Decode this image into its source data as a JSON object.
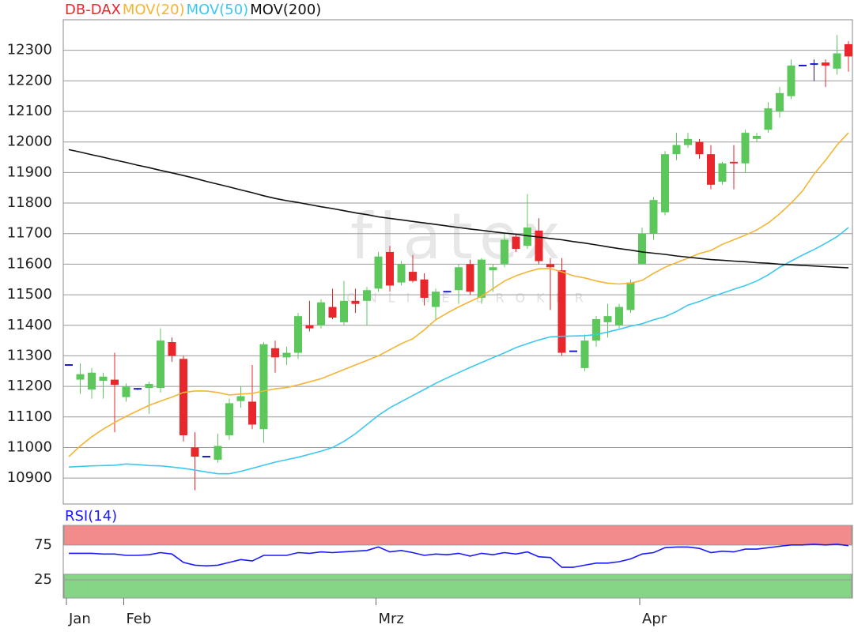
{
  "chart_data": [
    {
      "type": "candlestick",
      "watermark": "flatex",
      "watermark_sub": "ONLINE BROKER",
      "categories": [
        "Jan",
        null,
        null,
        null,
        null,
        "Feb",
        null,
        null,
        null,
        null,
        null,
        null,
        null,
        null,
        null,
        null,
        null,
        null,
        null,
        null,
        null,
        null,
        null,
        null,
        null,
        null,
        null,
        "Mrz",
        null,
        null,
        null,
        null,
        null,
        null,
        null,
        null,
        null,
        null,
        null,
        null,
        null,
        null,
        null,
        null,
        null,
        null,
        null,
        null,
        null,
        null,
        "Apr",
        null,
        null,
        null,
        null,
        null,
        null,
        null,
        null,
        null,
        null,
        null,
        null,
        null,
        null,
        null,
        null,
        null,
        null
      ],
      "series": [
        {
          "name": "DB-DAX",
          "color": "#e8262b",
          "up_color": "#5cc85c",
          "flat_color": "#1a1acc",
          "open": [
            11270,
            11222,
            11190,
            11218,
            11222,
            11165,
            11192,
            11195,
            11195,
            11345,
            11290,
            11000,
            10970,
            10960,
            11040,
            11152,
            11150,
            11060,
            11325,
            11295,
            11310,
            11400,
            11400,
            11460,
            11410,
            11480,
            11480,
            11520,
            11640,
            11540,
            11575,
            11550,
            11460,
            11510,
            11515,
            11600,
            11490,
            11580,
            11600,
            11690,
            11660,
            11710,
            11600,
            11580,
            11315,
            11260,
            11350,
            11410,
            11400,
            11450,
            11600,
            11700,
            11770,
            11960,
            11990,
            12000,
            11960,
            11870,
            11935,
            11930,
            12010,
            12040,
            12100,
            12150,
            12250,
            12255,
            12260,
            12240,
            12320
          ],
          "high": [
            11270,
            11275,
            11260,
            11245,
            11310,
            11210,
            11195,
            11215,
            11390,
            11360,
            11300,
            11050,
            10972,
            11045,
            11160,
            11200,
            11270,
            11345,
            11350,
            11330,
            11440,
            11480,
            11485,
            11520,
            11545,
            11520,
            11525,
            11640,
            11660,
            11610,
            11630,
            11570,
            11520,
            11512,
            11600,
            11615,
            11620,
            11600,
            11700,
            11700,
            11830,
            11750,
            11620,
            11620,
            11317,
            11370,
            11430,
            11470,
            11470,
            11550,
            11720,
            11820,
            11970,
            12030,
            12030,
            12010,
            11990,
            11935,
            11990,
            12040,
            12030,
            12130,
            12180,
            12270,
            12252,
            12270,
            12270,
            12350,
            12330
          ],
          "low": [
            11270,
            11175,
            11160,
            11160,
            11050,
            11150,
            11188,
            11110,
            11180,
            11280,
            11020,
            10860,
            10968,
            10950,
            11025,
            11130,
            11060,
            11015,
            11245,
            11270,
            11290,
            11380,
            11390,
            11420,
            11400,
            11440,
            11400,
            11510,
            11510,
            11530,
            11540,
            11465,
            11420,
            11508,
            11470,
            11500,
            11470,
            11510,
            11590,
            11640,
            11650,
            11600,
            11450,
            11300,
            11313,
            11250,
            11330,
            11360,
            11390,
            11440,
            11600,
            11680,
            11760,
            11940,
            11980,
            11945,
            11845,
            11860,
            11845,
            11900,
            12000,
            12030,
            12080,
            12140,
            12248,
            12200,
            12180,
            12220,
            12230
          ],
          "close": [
            11270,
            11240,
            11245,
            11232,
            11205,
            11200,
            11192,
            11208,
            11350,
            11300,
            11040,
            10970,
            10970,
            11005,
            11145,
            11168,
            11075,
            11338,
            11295,
            11310,
            11430,
            11390,
            11475,
            11425,
            11480,
            11470,
            11515,
            11625,
            11530,
            11600,
            11545,
            11490,
            11510,
            11510,
            11590,
            11510,
            11615,
            11590,
            11680,
            11650,
            11720,
            11610,
            11590,
            11310,
            11315,
            11350,
            11420,
            11430,
            11460,
            11540,
            11700,
            11810,
            11960,
            11990,
            12010,
            11960,
            11860,
            11930,
            11930,
            12030,
            12020,
            12110,
            12160,
            12250,
            12250,
            12255,
            12250,
            12290,
            12280
          ]
        },
        {
          "name": "MOV(20)",
          "type": "line",
          "color": "#f5b433",
          "values": [
            10970,
            11005,
            11035,
            11060,
            11082,
            11102,
            11120,
            11138,
            11152,
            11165,
            11180,
            11185,
            11185,
            11180,
            11172,
            11175,
            11177,
            11185,
            11192,
            11196,
            11205,
            11215,
            11225,
            11240,
            11255,
            11270,
            11285,
            11300,
            11320,
            11340,
            11356,
            11385,
            11418,
            11440,
            11460,
            11478,
            11495,
            11520,
            11545,
            11562,
            11575,
            11585,
            11586,
            11575,
            11562,
            11555,
            11545,
            11538,
            11535,
            11538,
            11547,
            11570,
            11590,
            11605,
            11620,
            11635,
            11645,
            11665,
            11680,
            11695,
            11712,
            11735,
            11765,
            11800,
            11840,
            11895,
            11940,
            11990,
            12030
          ]
        },
        {
          "name": "MOV(50)",
          "type": "line",
          "color": "#3cc8f0",
          "values": [
            10936,
            10938,
            10940,
            10941,
            10942,
            10946,
            10944,
            10941,
            10940,
            10936,
            10932,
            10926,
            10920,
            10914,
            10914,
            10922,
            10932,
            10942,
            10952,
            10960,
            10968,
            10978,
            10988,
            11000,
            11020,
            11045,
            11075,
            11105,
            11130,
            11150,
            11170,
            11190,
            11210,
            11228,
            11245,
            11262,
            11278,
            11294,
            11310,
            11327,
            11340,
            11352,
            11362,
            11364,
            11365,
            11366,
            11370,
            11378,
            11387,
            11397,
            11405,
            11418,
            11428,
            11445,
            11466,
            11478,
            11493,
            11505,
            11518,
            11530,
            11545,
            11565,
            11590,
            11610,
            11630,
            11648,
            11668,
            11690,
            11720
          ]
        },
        {
          "name": "MOV(200)",
          "type": "line",
          "color": "#111111",
          "values": [
            11975,
            11967,
            11958,
            11950,
            11941,
            11933,
            11924,
            11916,
            11907,
            11899,
            11890,
            11881,
            11871,
            11862,
            11853,
            11843,
            11834,
            11824,
            11815,
            11808,
            11802,
            11795,
            11788,
            11782,
            11775,
            11768,
            11762,
            11755,
            11750,
            11745,
            11740,
            11735,
            11730,
            11725,
            11720,
            11715,
            11711,
            11706,
            11702,
            11698,
            11693,
            11689,
            11684,
            11680,
            11674,
            11669,
            11663,
            11657,
            11651,
            11646,
            11640,
            11636,
            11632,
            11627,
            11623,
            11619,
            11615,
            11613,
            11610,
            11608,
            11605,
            11603,
            11600,
            11598,
            11596,
            11594,
            11592,
            11590,
            11588
          ]
        }
      ],
      "ylim": [
        10815,
        12400
      ],
      "yticks": [
        10900,
        11000,
        11100,
        11200,
        11300,
        11400,
        11500,
        11600,
        11700,
        11800,
        11900,
        12000,
        12100,
        12200,
        12300
      ],
      "grid": true
    },
    {
      "type": "line",
      "series": [
        {
          "name": "RSI(14)",
          "color": "#1a1aff",
          "values": [
            63,
            63,
            63,
            62,
            62,
            60,
            60,
            61,
            64,
            62,
            50,
            46,
            45,
            46,
            50,
            54,
            52,
            60,
            60,
            60,
            64,
            63,
            65,
            64,
            65,
            66,
            67,
            72,
            65,
            67,
            64,
            60,
            62,
            61,
            63,
            59,
            63,
            61,
            64,
            62,
            65,
            58,
            57,
            43,
            43,
            46,
            49,
            49,
            51,
            55,
            62,
            64,
            71,
            72,
            72,
            70,
            64,
            66,
            65,
            69,
            69,
            71,
            73,
            75,
            75,
            76,
            75,
            76,
            74
          ]
        }
      ],
      "ylim": [
        -1,
        103
      ],
      "yticks": [
        25,
        75
      ],
      "zones": [
        {
          "from": 75,
          "to": 103,
          "color": "#f28b8b"
        },
        {
          "from": -1,
          "to": 33,
          "color": "#86d486"
        }
      ],
      "grid": true
    }
  ]
}
